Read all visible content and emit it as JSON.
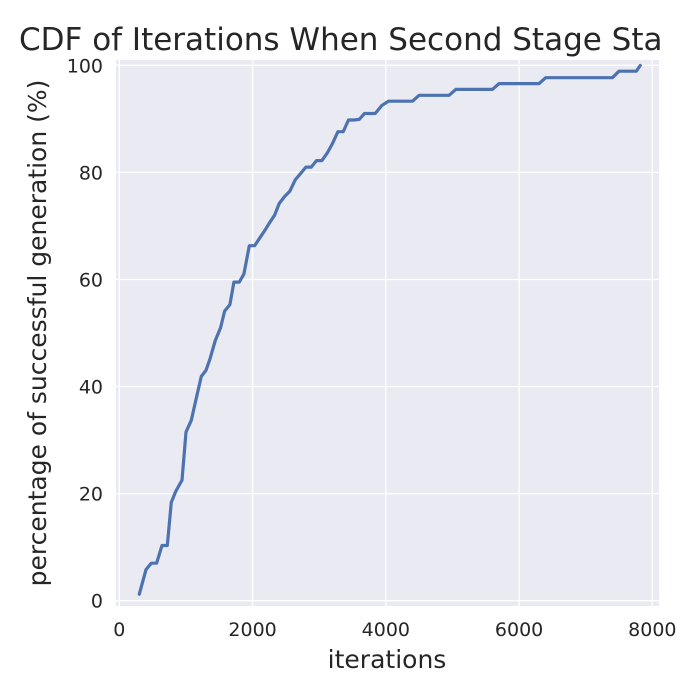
{
  "chart_data": {
    "type": "line",
    "title": "CDF of Iterations When Second Stage Sta",
    "xlabel": "iterations",
    "ylabel": "percentage of successful generation (%)",
    "xlim": [
      -50,
      8100
    ],
    "ylim": [
      -1,
      101
    ],
    "xticks": [
      0,
      2000,
      4000,
      6000,
      8000
    ],
    "yticks": [
      0,
      20,
      40,
      60,
      80,
      100
    ],
    "grid": true,
    "background": "#eaeaf2",
    "color": "#4c72b0",
    "series": [
      {
        "x": [
          300,
          400,
          480,
          560,
          640,
          720,
          780,
          850,
          940,
          1000,
          1080,
          1150,
          1230,
          1300,
          1360,
          1440,
          1520,
          1580,
          1660,
          1720,
          1800,
          1870,
          1950,
          2030,
          2100,
          2180,
          2250,
          2330,
          2400,
          2480,
          2560,
          2640,
          2720,
          2800,
          2880,
          2960,
          3040,
          3120,
          3200,
          3280,
          3360,
          3440,
          3520,
          3600,
          3680,
          3760,
          3840,
          3940,
          4040,
          4160,
          4300,
          4400,
          4500,
          4650,
          4800,
          4950,
          5050,
          5200,
          5400,
          5600,
          5700,
          5900,
          6100,
          6300,
          6400,
          6600,
          6800,
          7000,
          7200,
          7400,
          7500,
          7650,
          7760,
          7820
        ],
        "y": [
          1.2,
          5.8,
          7.0,
          7.0,
          10.3,
          10.3,
          18.4,
          20.5,
          22.5,
          31.5,
          33.7,
          37.6,
          41.9,
          43.0,
          45.1,
          48.6,
          51.0,
          54.1,
          55.3,
          59.5,
          59.5,
          61.0,
          66.3,
          66.3,
          67.6,
          69.1,
          70.5,
          72.0,
          74.2,
          75.5,
          76.5,
          78.6,
          79.8,
          81.0,
          81.0,
          82.2,
          82.2,
          83.6,
          85.4,
          87.6,
          87.6,
          89.8,
          89.8,
          89.9,
          91.0,
          91.0,
          91.0,
          92.5,
          93.3,
          93.3,
          93.3,
          93.3,
          94.4,
          94.4,
          94.4,
          94.4,
          95.5,
          95.5,
          95.5,
          95.5,
          96.6,
          96.6,
          96.6,
          96.6,
          97.7,
          97.7,
          97.7,
          97.7,
          97.7,
          97.7,
          98.9,
          98.9,
          98.9,
          100.0
        ]
      }
    ]
  }
}
